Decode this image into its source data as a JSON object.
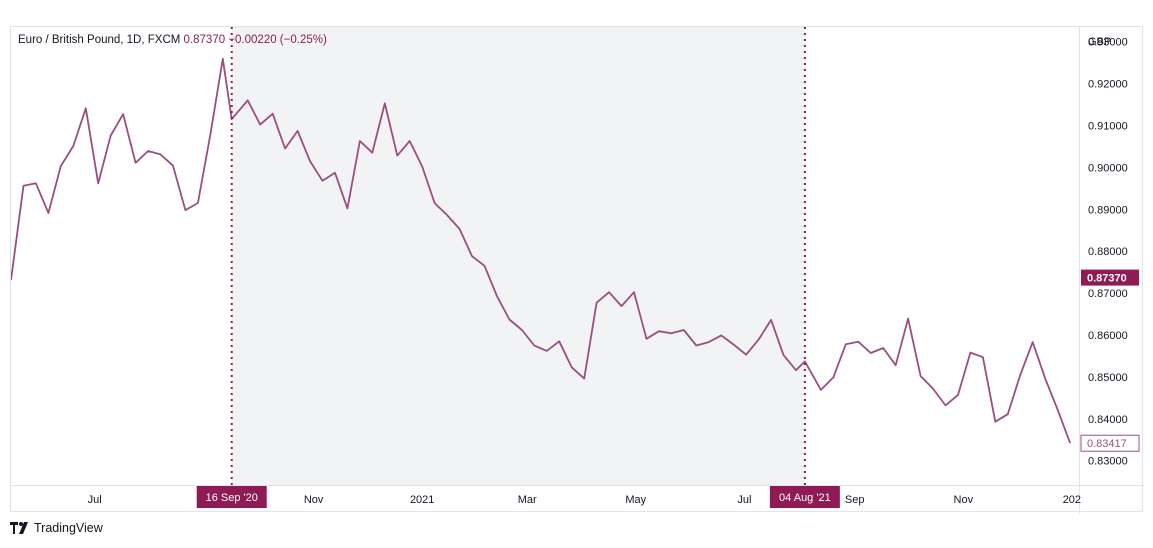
{
  "legend": {
    "symbol": "Euro / British Pound, 1D, FXCM",
    "last": "0.87370",
    "change": "−0.00220 (−0.25%)"
  },
  "branding": {
    "name": "TradingView",
    "icon": "tradingview-logo-icon"
  },
  "colors": {
    "line": "#9b4f80",
    "accent": "#8e1b54",
    "shade": "#f2f3f5",
    "grid": "#e0e3eb"
  },
  "chart_data": {
    "type": "line",
    "title": "Euro / British Pound, 1D, FXCM",
    "currency": "GBP",
    "x": [
      "2020-05-15",
      "2020-05-22",
      "2020-05-29",
      "2020-06-05",
      "2020-06-12",
      "2020-06-19",
      "2020-06-26",
      "2020-07-03",
      "2020-07-10",
      "2020-07-17",
      "2020-07-24",
      "2020-07-31",
      "2020-08-07",
      "2020-08-14",
      "2020-08-21",
      "2020-08-28",
      "2020-09-04",
      "2020-09-11",
      "2020-09-16",
      "2020-09-25",
      "2020-10-02",
      "2020-10-09",
      "2020-10-16",
      "2020-10-23",
      "2020-10-30",
      "2020-11-06",
      "2020-11-13",
      "2020-11-20",
      "2020-11-27",
      "2020-12-04",
      "2020-12-11",
      "2020-12-18",
      "2020-12-25",
      "2021-01-01",
      "2021-01-08",
      "2021-01-15",
      "2021-01-22",
      "2021-01-29",
      "2021-02-05",
      "2021-02-12",
      "2021-02-19",
      "2021-02-26",
      "2021-03-05",
      "2021-03-12",
      "2021-03-19",
      "2021-03-26",
      "2021-04-02",
      "2021-04-09",
      "2021-04-16",
      "2021-04-23",
      "2021-04-30",
      "2021-05-07",
      "2021-05-14",
      "2021-05-21",
      "2021-05-28",
      "2021-06-04",
      "2021-06-11",
      "2021-06-18",
      "2021-06-25",
      "2021-07-02",
      "2021-07-09",
      "2021-07-16",
      "2021-07-23",
      "2021-07-30",
      "2021-08-04",
      "2021-08-13",
      "2021-08-20",
      "2021-08-27",
      "2021-09-03",
      "2021-09-10",
      "2021-09-17",
      "2021-09-24",
      "2021-10-01",
      "2021-10-08",
      "2021-10-15",
      "2021-10-22",
      "2021-10-29",
      "2021-11-05",
      "2021-11-12",
      "2021-11-19",
      "2021-11-26",
      "2021-12-03",
      "2021-12-10",
      "2021-12-17",
      "2021-12-24",
      "2021-12-31"
    ],
    "values": [
      0.8731,
      0.8956,
      0.8962,
      0.8891,
      0.9003,
      0.9051,
      0.9141,
      0.8962,
      0.9076,
      0.9127,
      0.9011,
      0.9039,
      0.9031,
      0.9004,
      0.8898,
      0.8915,
      0.9079,
      0.9259,
      0.9115,
      0.916,
      0.9102,
      0.9128,
      0.9045,
      0.9087,
      0.9015,
      0.8968,
      0.8987,
      0.8902,
      0.9063,
      0.9035,
      0.9153,
      0.9028,
      0.9063,
      0.9002,
      0.8915,
      0.8886,
      0.8853,
      0.8788,
      0.8765,
      0.8693,
      0.8637,
      0.8612,
      0.8575,
      0.8562,
      0.8585,
      0.8523,
      0.8496,
      0.8677,
      0.8702,
      0.8669,
      0.8702,
      0.8591,
      0.8609,
      0.8604,
      0.8612,
      0.8575,
      0.8583,
      0.8599,
      0.8577,
      0.8553,
      0.8589,
      0.8636,
      0.8552,
      0.8516,
      0.8537,
      0.8469,
      0.8499,
      0.8578,
      0.8584,
      0.8557,
      0.8569,
      0.8528,
      0.8639,
      0.8502,
      0.8472,
      0.8432,
      0.8457,
      0.8558,
      0.8547,
      0.8393,
      0.8411,
      0.8505,
      0.8583,
      0.8496,
      0.8422,
      0.8342
    ],
    "x_ticks": [
      {
        "date": "2020-07-01",
        "label": "Jul"
      },
      {
        "date": "2020-11-01",
        "label": "Nov"
      },
      {
        "date": "2021-01-01",
        "label": "2021"
      },
      {
        "date": "2021-03-01",
        "label": "Mar"
      },
      {
        "date": "2021-05-01",
        "label": "May"
      },
      {
        "date": "2021-07-01",
        "label": "Jul"
      },
      {
        "date": "2021-09-01",
        "label": "Sep"
      },
      {
        "date": "2021-11-01",
        "label": "Nov"
      },
      {
        "date": "2022-01-01",
        "label": "202"
      }
    ],
    "y_ticks": [
      "0.93000",
      "0.92000",
      "0.91000",
      "0.90000",
      "0.89000",
      "0.88000",
      "0.87000",
      "0.86000",
      "0.85000",
      "0.84000",
      "0.83000"
    ],
    "ylim": [
      0.8242,
      0.9335
    ],
    "xlim": [
      "2020-05-15",
      "2022-01-05"
    ],
    "axis_unit": "GBP",
    "price_labels": [
      {
        "value": 0.8737,
        "text": "0.87370",
        "style": "filled"
      },
      {
        "value": 0.83417,
        "text": "0.83417",
        "style": "outlined"
      }
    ],
    "markers": [
      {
        "date": "2020-09-16",
        "label": "16 Sep '20"
      },
      {
        "date": "2021-08-04",
        "label": "04 Aug '21"
      }
    ],
    "highlight_range": [
      "2020-09-16",
      "2021-08-04"
    ],
    "grid": false
  }
}
